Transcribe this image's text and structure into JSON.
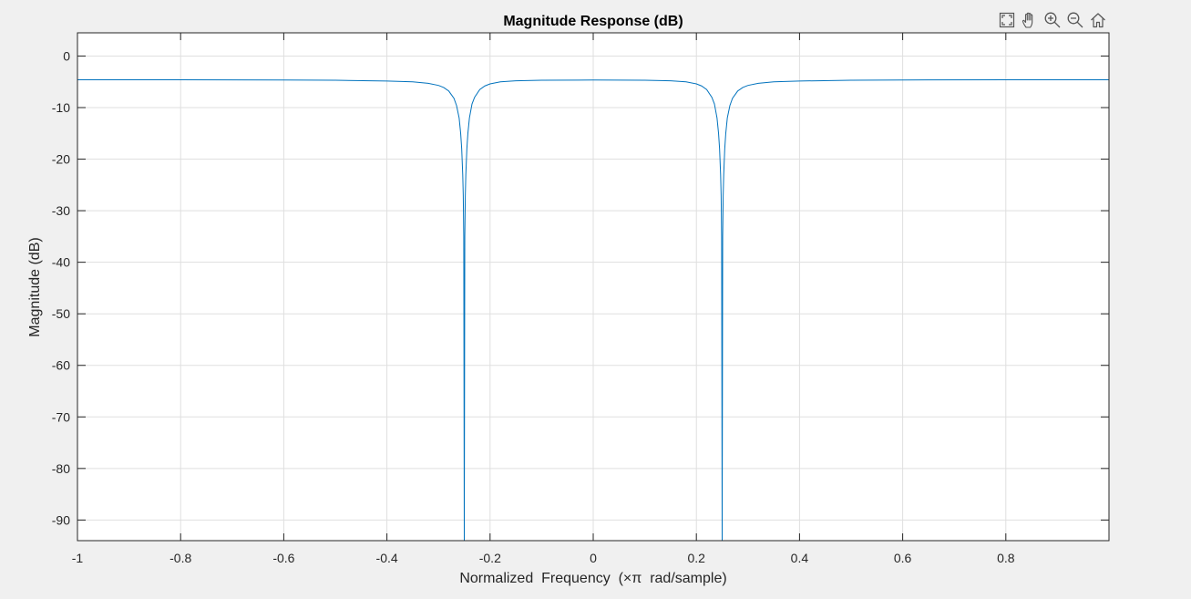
{
  "figure": {
    "toolbar": [
      {
        "name": "export-icon"
      },
      {
        "name": "pan-icon"
      },
      {
        "name": "zoom-in-icon"
      },
      {
        "name": "zoom-out-icon"
      },
      {
        "name": "home-icon"
      }
    ]
  },
  "chart_data": {
    "type": "line",
    "title": "Magnitude Response (dB)",
    "xlabel": "Normalized  Frequency  (×π  rad/sample)",
    "ylabel": "Magnitude (dB)",
    "xlim": [
      -1,
      1
    ],
    "ylim": [
      -94,
      4.5
    ],
    "xticks": [
      -1,
      -0.8,
      -0.6,
      -0.4,
      -0.2,
      0,
      0.2,
      0.4,
      0.6,
      0.8
    ],
    "xtick_labels": [
      "-1",
      "-0.8",
      "-0.6",
      "-0.4",
      "-0.2",
      "0",
      "0.2",
      "0.4",
      "0.6",
      "0.8"
    ],
    "yticks": [
      0,
      -10,
      -20,
      -30,
      -40,
      -50,
      -60,
      -70,
      -80,
      -90
    ],
    "ytick_labels": [
      "0",
      "-10",
      "-20",
      "-30",
      "-40",
      "-50",
      "-60",
      "-70",
      "-80",
      "-90"
    ],
    "grid": true,
    "line_color": "#0072bd",
    "series": [
      {
        "x": [
          -1,
          -0.8,
          -0.6,
          -0.5,
          -0.4,
          -0.35,
          -0.32,
          -0.3,
          -0.29,
          -0.28,
          -0.27,
          -0.265,
          -0.26,
          -0.257,
          -0.255,
          -0.253,
          -0.252,
          -0.251,
          -0.25,
          -0.249,
          -0.248,
          -0.247,
          -0.245,
          -0.243,
          -0.24,
          -0.235,
          -0.23,
          -0.22,
          -0.21,
          -0.2,
          -0.18,
          -0.15,
          -0.1,
          0,
          0.1,
          0.15,
          0.18,
          0.2,
          0.21,
          0.22,
          0.23,
          0.235,
          0.24,
          0.243,
          0.245,
          0.247,
          0.248,
          0.249,
          0.25,
          0.251,
          0.252,
          0.253,
          0.255,
          0.257,
          0.26,
          0.265,
          0.27,
          0.28,
          0.29,
          0.3,
          0.32,
          0.35,
          0.4,
          0.5,
          0.6,
          0.8,
          1
        ],
        "y": [
          -4.6,
          -4.6,
          -4.65,
          -4.7,
          -4.85,
          -5.0,
          -5.3,
          -5.7,
          -6.1,
          -6.8,
          -8.2,
          -9.6,
          -12,
          -15,
          -18,
          -23,
          -27,
          -35,
          -94,
          -35,
          -27,
          -23,
          -18,
          -15,
          -12,
          -9.3,
          -8.0,
          -6.5,
          -5.8,
          -5.4,
          -5.0,
          -4.8,
          -4.7,
          -4.65,
          -4.7,
          -4.8,
          -5.0,
          -5.4,
          -5.8,
          -6.5,
          -8.0,
          -9.3,
          -12,
          -15,
          -18,
          -23,
          -27,
          -35,
          -94,
          -35,
          -27,
          -23,
          -18,
          -15,
          -12,
          -9.6,
          -8.2,
          -6.8,
          -6.1,
          -5.7,
          -5.3,
          -5.0,
          -4.85,
          -4.7,
          -4.65,
          -4.6,
          -4.6
        ]
      }
    ]
  }
}
